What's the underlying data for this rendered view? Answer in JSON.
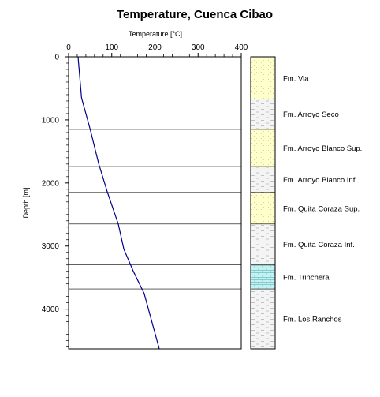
{
  "chart_data": {
    "type": "line",
    "title": "Temperature, Cuenca Cibao",
    "xlabel": "Temperature [°C]",
    "ylabel": "Depth [m]",
    "xlim": [
      0,
      400
    ],
    "ylim": [
      4630,
      0
    ],
    "y_inverted": true,
    "x_axis_position": "top",
    "x_ticks": [
      "0",
      "100",
      "200",
      "300",
      "400"
    ],
    "y_ticks": [
      "0",
      "1000",
      "2000",
      "3000",
      "4000"
    ],
    "grid": false,
    "line_color": "#00008b",
    "series": [
      {
        "x": [
          22,
          30,
          50,
          70,
          90,
          115,
          128,
          150,
          175,
          210
        ],
        "y": [
          0,
          650,
          1150,
          1700,
          2150,
          2650,
          3050,
          3400,
          3750,
          4630
        ]
      }
    ],
    "formation_boundaries": [
      670,
      1150,
      1740,
      2150,
      2650,
      3300,
      3680
    ],
    "strata": [
      {
        "name": "Fm. Via",
        "top": 0,
        "bottom": 670,
        "lithology": "sand"
      },
      {
        "name": "Fm. Arroyo Seco",
        "top": 670,
        "bottom": 1150,
        "lithology": "shale"
      },
      {
        "name": "Fm. Arroyo Blanco Sup.",
        "top": 1150,
        "bottom": 1740,
        "lithology": "sand"
      },
      {
        "name": "Fm. Arroyo Blanco Inf.",
        "top": 1740,
        "bottom": 2150,
        "lithology": "shale"
      },
      {
        "name": "Fm. Quita Coraza Sup.",
        "top": 2150,
        "bottom": 2650,
        "lithology": "sand"
      },
      {
        "name": "Fm. Quita Coraza Inf.",
        "top": 2650,
        "bottom": 3300,
        "lithology": "shale"
      },
      {
        "name": "Fm. Trinchera",
        "top": 3300,
        "bottom": 3680,
        "lithology": "limestone"
      },
      {
        "name": "Fm. Los Ranchos",
        "top": 3680,
        "bottom": 4630,
        "lithology": "shale"
      }
    ],
    "lithology_colors": {
      "sand": "#ffffcc",
      "shale": "#f2f2f2",
      "limestone": "#c4f2f2"
    }
  }
}
